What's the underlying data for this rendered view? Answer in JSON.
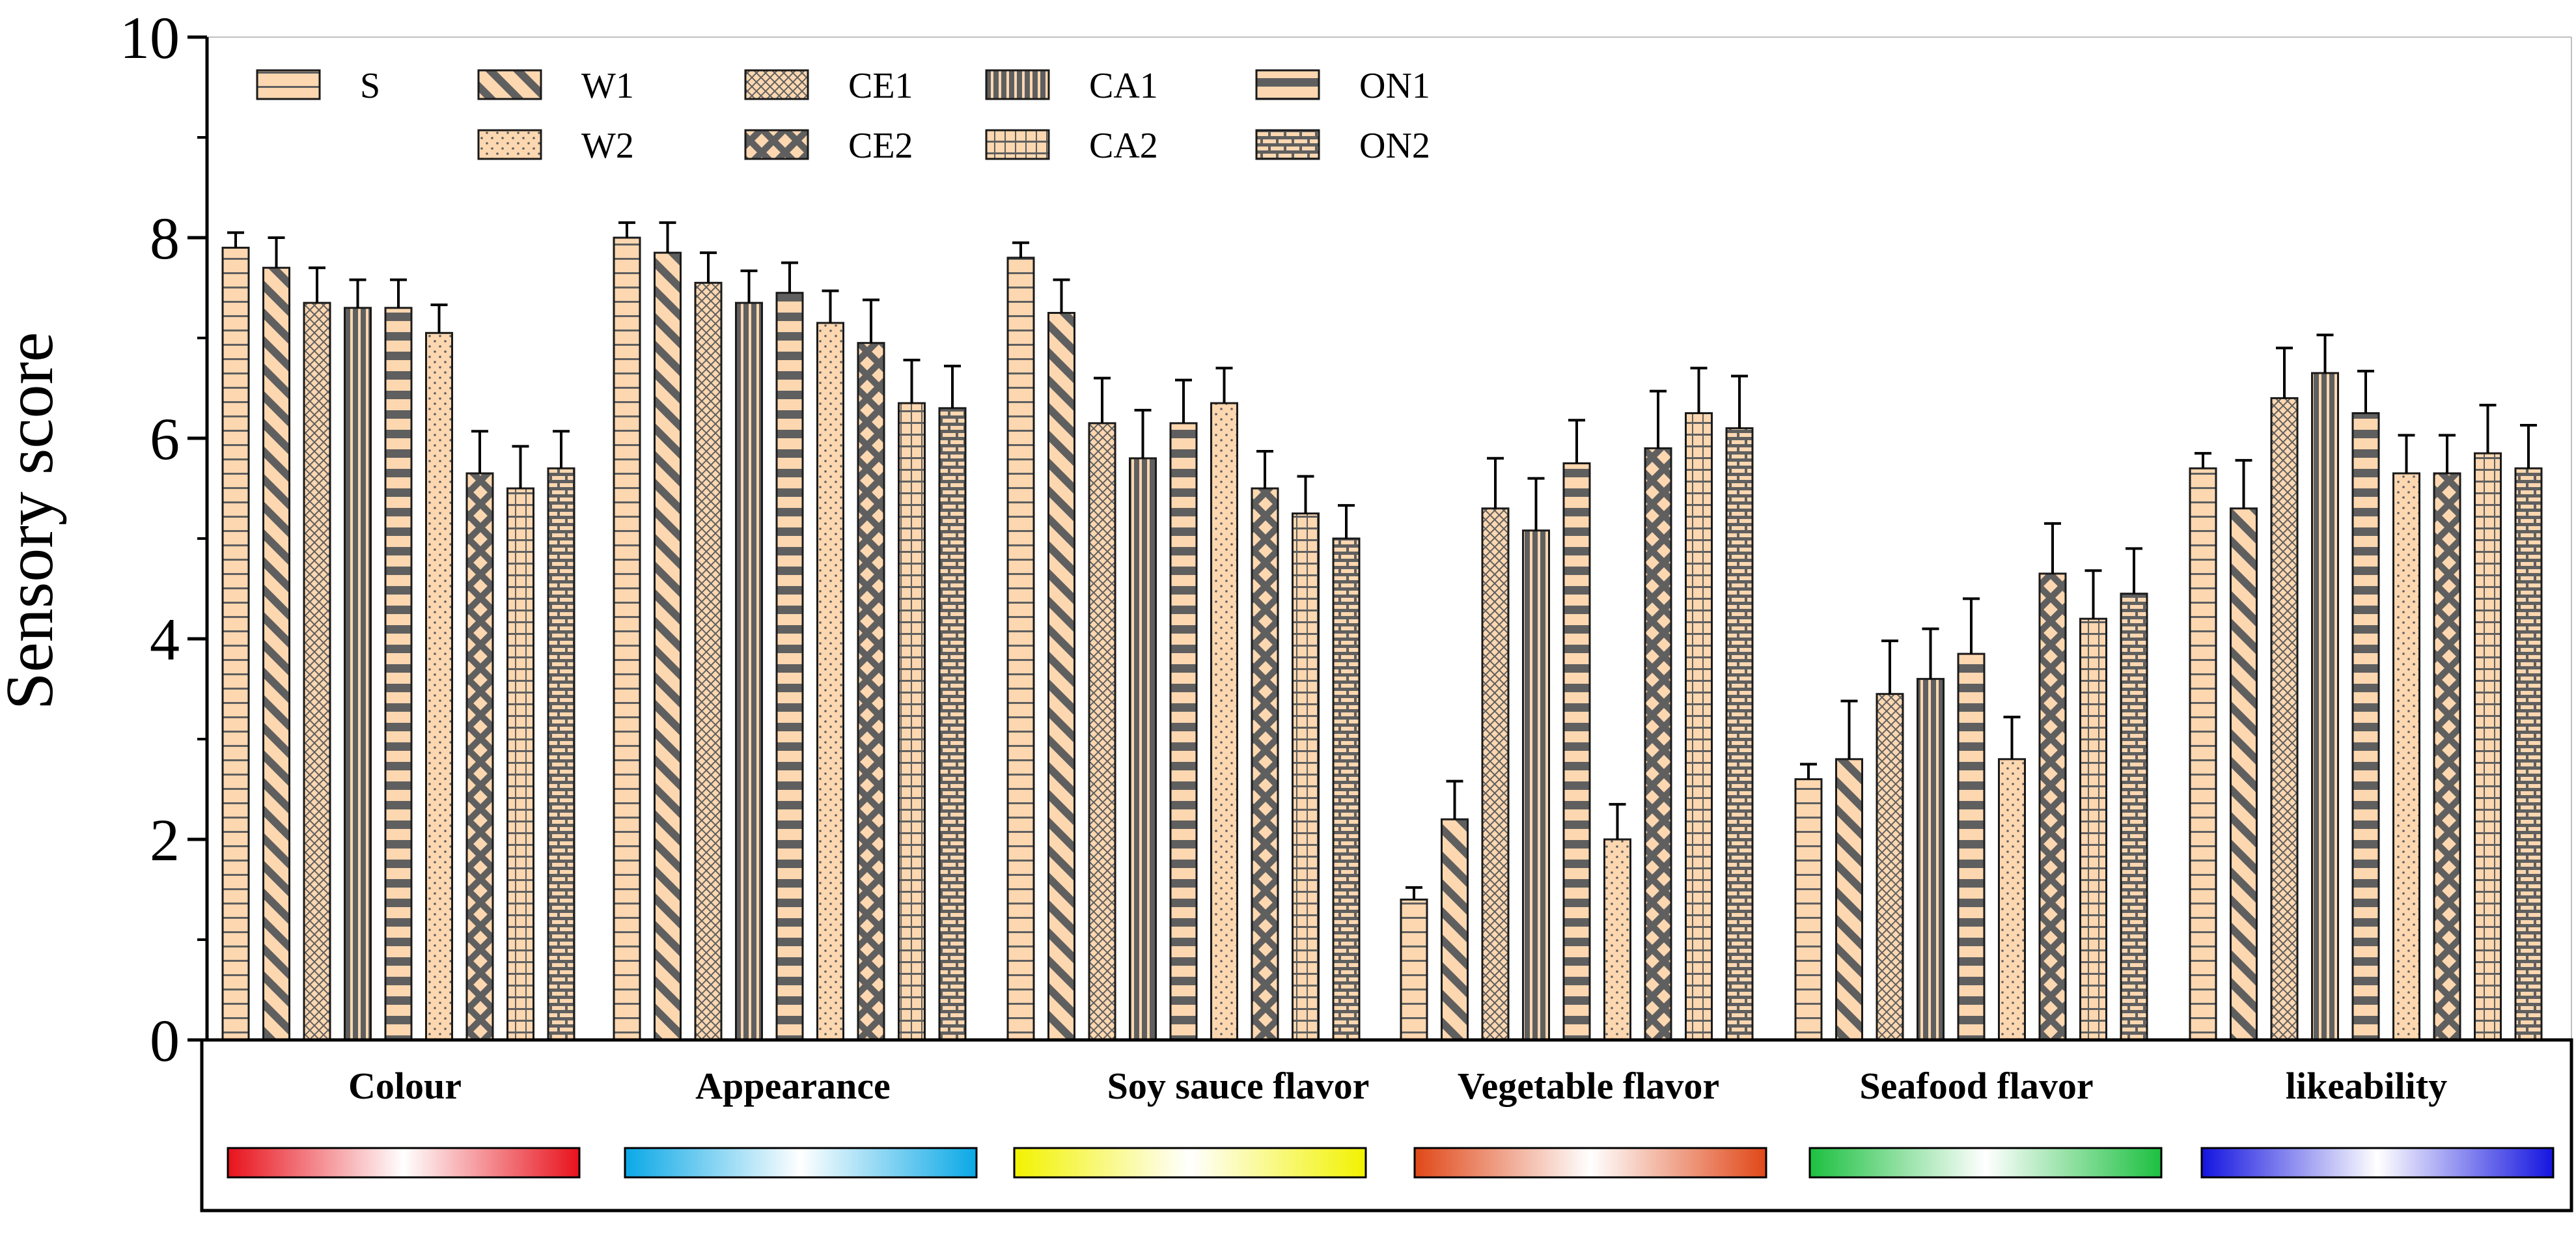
{
  "chart_data": {
    "type": "bar",
    "title": "",
    "xlabel": "",
    "ylabel": "Sensory score",
    "ylim": [
      0,
      10
    ],
    "yticks": [
      "0",
      "2",
      "4",
      "6",
      "8",
      "10"
    ],
    "grid": false,
    "legend_position": "top-left",
    "categories": [
      "Colour",
      "Appearance",
      "Soy sauce flavor",
      "Vegetable flavor",
      "Seafood flavor",
      "likeability"
    ],
    "category_gradient_colors": [
      "#e8121c",
      "#0aa8e6",
      "#f2f200",
      "#e04818",
      "#1cc040",
      "#1414e0"
    ],
    "series": [
      {
        "name": "S",
        "pattern": "hlines",
        "values": [
          7.9,
          8.0,
          7.8,
          1.4,
          2.6,
          5.7
        ],
        "errors": [
          0.15,
          0.15,
          0.15,
          0.12,
          0.15,
          0.15
        ]
      },
      {
        "name": "W1",
        "pattern": "diagonal",
        "values": [
          7.7,
          7.85,
          7.25,
          2.2,
          2.8,
          5.3
        ],
        "errors": [
          0.3,
          0.3,
          0.33,
          0.38,
          0.58,
          0.48
        ]
      },
      {
        "name": "CE1",
        "pattern": "crosshatch",
        "values": [
          7.35,
          7.55,
          6.15,
          5.3,
          3.45,
          6.4
        ],
        "errors": [
          0.35,
          0.3,
          0.45,
          0.5,
          0.53,
          0.5
        ]
      },
      {
        "name": "CA1",
        "pattern": "vthick",
        "values": [
          7.3,
          7.35,
          5.8,
          5.08,
          3.6,
          6.65
        ],
        "errors": [
          0.28,
          0.32,
          0.48,
          0.52,
          0.5,
          0.38
        ]
      },
      {
        "name": "ON1",
        "pattern": "hthick",
        "values": [
          7.3,
          7.45,
          6.15,
          5.75,
          3.85,
          6.25
        ],
        "errors": [
          0.28,
          0.3,
          0.43,
          0.43,
          0.55,
          0.42
        ]
      },
      {
        "name": "W2",
        "pattern": "dots",
        "values": [
          7.05,
          7.15,
          6.35,
          2.0,
          2.8,
          5.65
        ],
        "errors": [
          0.28,
          0.32,
          0.35,
          0.35,
          0.42,
          0.38
        ]
      },
      {
        "name": "CE2",
        "pattern": "xthick",
        "values": [
          5.65,
          6.95,
          5.5,
          5.9,
          4.65,
          5.65
        ],
        "errors": [
          0.42,
          0.43,
          0.37,
          0.57,
          0.5,
          0.38
        ]
      },
      {
        "name": "CA2",
        "pattern": "grid",
        "values": [
          5.5,
          6.35,
          5.25,
          6.25,
          4.2,
          5.85
        ],
        "errors": [
          0.42,
          0.43,
          0.37,
          0.45,
          0.48,
          0.48
        ]
      },
      {
        "name": "ON2",
        "pattern": "brick",
        "values": [
          5.7,
          6.3,
          5.0,
          6.1,
          4.45,
          5.7
        ],
        "errors": [
          0.37,
          0.42,
          0.33,
          0.52,
          0.45,
          0.43
        ]
      }
    ]
  },
  "colors": {
    "bar_fill": "#fcd7b0",
    "pattern_ink": "#5f5f5f",
    "axis": "#000000"
  }
}
